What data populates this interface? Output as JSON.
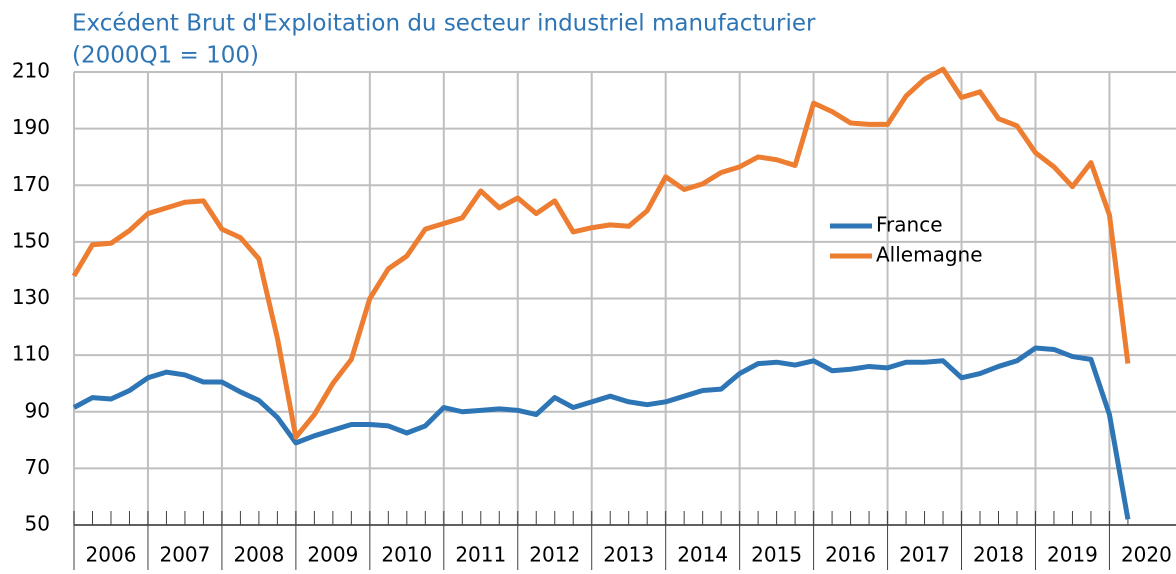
{
  "chart_data": {
    "type": "line",
    "title": "Excédent Brut d'Exploitation du secteur industriel manufacturier",
    "subtitle": "(2000Q1 = 100)",
    "x": [
      2006,
      2006.25,
      2006.5,
      2006.75,
      2007,
      2007.25,
      2007.5,
      2007.75,
      2008,
      2008.25,
      2008.5,
      2008.75,
      2009,
      2009.25,
      2009.5,
      2009.75,
      2010,
      2010.25,
      2010.5,
      2010.75,
      2011,
      2011.25,
      2011.5,
      2011.75,
      2012,
      2012.25,
      2012.5,
      2012.75,
      2013,
      2013.25,
      2013.5,
      2013.75,
      2014,
      2014.25,
      2014.5,
      2014.75,
      2015,
      2015.25,
      2015.5,
      2015.75,
      2016,
      2016.25,
      2016.5,
      2016.75,
      2017,
      2017.25,
      2017.5,
      2017.75,
      2018,
      2018.25,
      2018.5,
      2018.75,
      2019,
      2019.25,
      2019.5,
      2019.75,
      2020,
      2020.25
    ],
    "series": [
      {
        "name": "France",
        "color": "#2e75b6",
        "values": [
          91.5,
          95,
          94.5,
          97.5,
          102,
          104,
          103,
          100.5,
          100.5,
          97,
          94,
          88,
          79,
          81.5,
          83.5,
          85.5,
          85.5,
          85,
          82.5,
          85,
          91.5,
          90,
          90.5,
          91,
          90.5,
          89,
          95,
          91.5,
          93.5,
          95.5,
          93.5,
          92.5,
          93.5,
          95.5,
          97.5,
          98,
          103.5,
          107,
          107.5,
          106.5,
          108,
          104.5,
          105,
          106,
          105.5,
          107.5,
          107.5,
          108,
          102,
          103.5,
          106,
          108,
          112.5,
          112,
          109.5,
          108.5,
          89,
          52
        ]
      },
      {
        "name": "Allemagne",
        "color": "#ed7d31",
        "values": [
          138,
          149,
          149.5,
          154,
          160,
          162,
          164,
          164.5,
          154.5,
          151.5,
          144,
          116,
          81,
          89,
          100,
          108.5,
          130,
          140.5,
          145,
          154.5,
          156.5,
          158.5,
          168,
          162,
          165.5,
          160,
          164.5,
          153.5,
          155,
          156,
          155.5,
          161,
          173,
          168.5,
          170.5,
          174.5,
          176.5,
          180,
          179,
          177,
          199,
          196,
          192,
          191.5,
          191.5,
          201.5,
          207.5,
          211,
          201,
          203,
          193.5,
          191,
          181.5,
          176.5,
          169.5,
          178,
          159.5,
          107
        ]
      }
    ],
    "xlim": [
      2006,
      2020.9
    ],
    "xticks": [
      2006,
      2007,
      2008,
      2009,
      2010,
      2011,
      2012,
      2013,
      2014,
      2015,
      2016,
      2017,
      2018,
      2019,
      2020
    ],
    "ylim": [
      50,
      210
    ],
    "yticks": [
      50,
      70,
      90,
      110,
      130,
      150,
      170,
      190,
      210
    ],
    "grid": true
  }
}
